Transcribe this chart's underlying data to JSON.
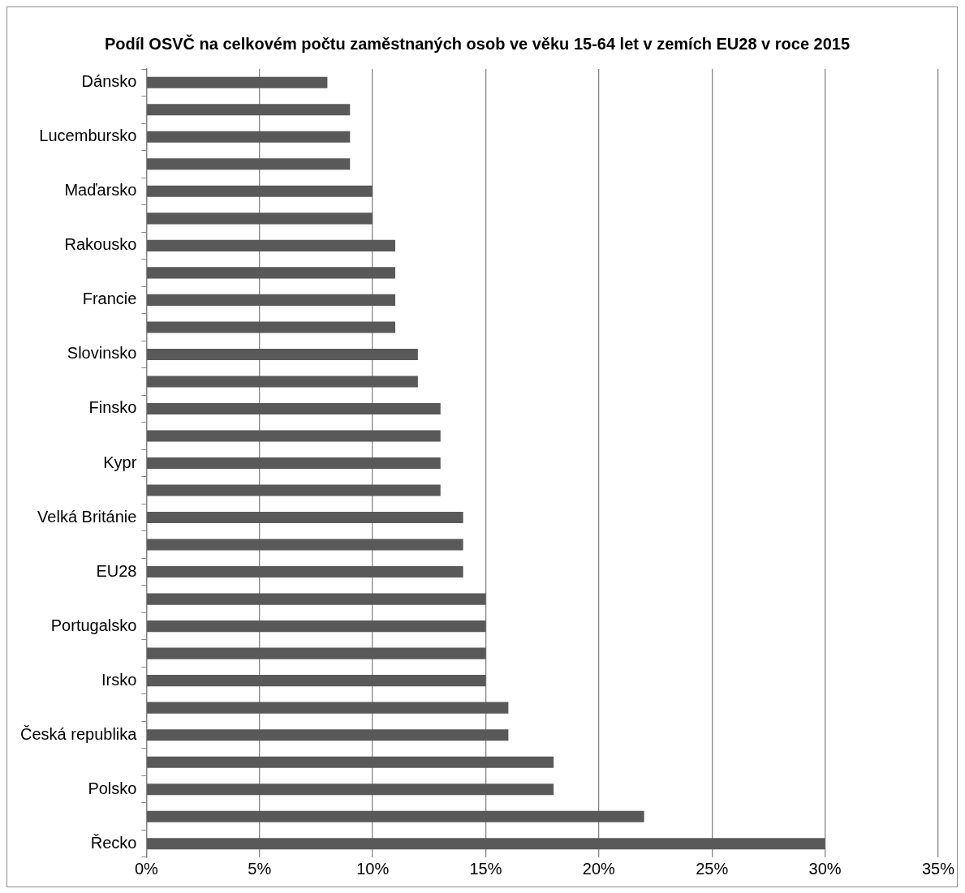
{
  "chart_data": {
    "type": "bar",
    "orientation": "horizontal",
    "title": "Podíl OSVČ na celkovém počtu zaměstnaných osob ve věku 15-64 let v zemích EU28 v roce 2015",
    "categories": [
      "Dánsko",
      null,
      "Lucembursko",
      null,
      "Maďarsko",
      null,
      "Rakousko",
      null,
      "Francie",
      null,
      "Slovinsko",
      null,
      "Finsko",
      null,
      "Kypr",
      null,
      "Velká Británie",
      null,
      "EU28",
      null,
      "Portugalsko",
      null,
      "Irsko",
      null,
      "Česká republika",
      null,
      "Polsko",
      null,
      "Řecko"
    ],
    "values": [
      8,
      9,
      9,
      9,
      10,
      10,
      11,
      11,
      11,
      11,
      12,
      12,
      13,
      13,
      13,
      13,
      14,
      14,
      14,
      15,
      15,
      15,
      15,
      16,
      16,
      18,
      18,
      22,
      30
    ],
    "color": "#595959",
    "xlim": [
      0,
      35
    ],
    "xticks": [
      {
        "value": 0,
        "label": "0%"
      },
      {
        "value": 5,
        "label": "5%"
      },
      {
        "value": 10,
        "label": "10%"
      },
      {
        "value": 15,
        "label": "15%"
      },
      {
        "value": 20,
        "label": "20%"
      },
      {
        "value": 25,
        "label": "25%"
      },
      {
        "value": 30,
        "label": "30%"
      },
      {
        "value": 35,
        "label": "35%"
      }
    ],
    "grid": "x",
    "legend": false
  }
}
